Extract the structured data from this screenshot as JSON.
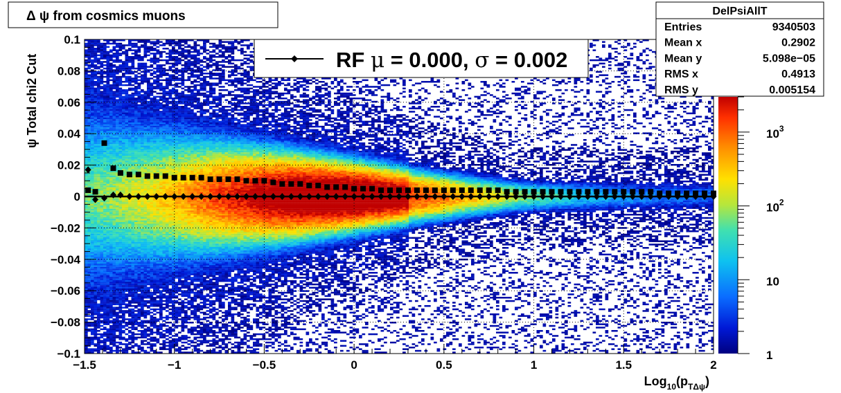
{
  "chart_data": {
    "type": "heatmap",
    "title": "Δ ψ from cosmics muons",
    "xlabel": "Log",
    "xlabel_sub": "10",
    "xlabel_arg": "(p",
    "xlabel_arg_sub": "TΔψ",
    "xlabel_close": ")",
    "ylabel": "ψ  Total chi2 Cut",
    "xlim": [
      -1.5,
      2
    ],
    "ylim": [
      -0.1,
      0.1
    ],
    "x_ticks": [
      -1.5,
      -1,
      -0.5,
      0,
      0.5,
      1,
      1.5,
      2
    ],
    "x_tick_labels": [
      "−1.5",
      "−1",
      "−0.5",
      "0",
      "0.5",
      "1",
      "1.5",
      "2"
    ],
    "y_ticks": [
      -0.1,
      -0.08,
      -0.06,
      -0.04,
      -0.02,
      0,
      0.02,
      0.04,
      0.06,
      0.08,
      0.1
    ],
    "y_tick_labels": [
      "−0.1",
      "−0.08",
      "−0.06",
      "−0.04",
      "−0.02",
      "0",
      "0.02",
      "0.04",
      "0.06",
      "0.08",
      "0.1"
    ],
    "grid": true,
    "z_scale": "log",
    "z_range": [
      1,
      3000
    ],
    "z_ticks": [
      {
        "base": "1",
        "exp": ""
      },
      {
        "base": "10",
        "exp": ""
      },
      {
        "base": "10",
        "exp": "2"
      },
      {
        "base": "10",
        "exp": "3"
      }
    ],
    "z_tick_values": [
      1,
      10,
      100,
      1000
    ],
    "legend": {
      "label_prefix": "RF ",
      "mu_symbol": "μ",
      "mu_text": " =  0.000, ",
      "sigma_symbol": "σ",
      "sigma_text": " =   0.002",
      "placement": "top-center"
    },
    "stats": {
      "title": "DelPsiAllT",
      "rows": [
        {
          "label": "Entries",
          "value": "9340503"
        },
        {
          "label": "Mean x",
          "value": "0.2902"
        },
        {
          "label": "Mean y",
          "value": "5.098e−05"
        },
        {
          "label": "RMS x",
          "value": "0.4913"
        },
        {
          "label": "RMS y",
          "value": "0.005154"
        }
      ]
    },
    "series": [
      {
        "marker": "square",
        "x": [
          -1.48,
          -1.44,
          -1.39,
          -1.34,
          -1.3,
          -1.25,
          -1.2,
          -1.15,
          -1.1,
          -1.05,
          -1.0,
          -0.95,
          -0.9,
          -0.85,
          -0.8,
          -0.75,
          -0.7,
          -0.65,
          -0.6,
          -0.55,
          -0.5,
          -0.45,
          -0.4,
          -0.35,
          -0.3,
          -0.25,
          -0.2,
          -0.15,
          -0.1,
          -0.05,
          0.0,
          0.05,
          0.1,
          0.15,
          0.2,
          0.25,
          0.3,
          0.35,
          0.4,
          0.45,
          0.5,
          0.55,
          0.6,
          0.65,
          0.7,
          0.75,
          0.8,
          0.85,
          0.9,
          0.95,
          1.0,
          1.05,
          1.1,
          1.15,
          1.2,
          1.25,
          1.3,
          1.35,
          1.4,
          1.45,
          1.5,
          1.55,
          1.6,
          1.65,
          1.7,
          1.75,
          1.8,
          1.85,
          1.9,
          1.95,
          2.0
        ],
        "y": [
          0.004,
          0.003,
          0.034,
          0.018,
          0.015,
          0.014,
          0.014,
          0.013,
          0.013,
          0.013,
          0.012,
          0.012,
          0.012,
          0.012,
          0.011,
          0.011,
          0.011,
          0.011,
          0.01,
          0.01,
          0.01,
          0.009,
          0.008,
          0.008,
          0.008,
          0.007,
          0.007,
          0.006,
          0.006,
          0.006,
          0.005,
          0.005,
          0.005,
          0.004,
          0.004,
          0.004,
          0.004,
          0.004,
          0.004,
          0.004,
          0.004,
          0.004,
          0.004,
          0.004,
          0.004,
          0.004,
          0.004,
          0.003,
          0.003,
          0.003,
          0.003,
          0.003,
          0.003,
          0.003,
          0.003,
          0.003,
          0.003,
          0.003,
          0.003,
          0.003,
          0.003,
          0.003,
          0.003,
          0.003,
          0.002,
          0.002,
          0.002,
          0.002,
          0.002,
          0.002,
          0.002
        ]
      },
      {
        "marker": "diamond",
        "x": [
          -1.48,
          -1.44,
          -1.39,
          -1.34,
          -1.3,
          -1.25,
          -1.2,
          -1.15,
          -1.1,
          -1.05,
          -1.0,
          -0.95,
          -0.9,
          -0.85,
          -0.8,
          -0.75,
          -0.7,
          -0.65,
          -0.6,
          -0.55,
          -0.5,
          -0.45,
          -0.4,
          -0.35,
          -0.3,
          -0.25,
          -0.2,
          -0.15,
          -0.1,
          -0.05,
          0.0,
          0.05,
          0.1,
          0.15,
          0.2,
          0.25,
          0.3,
          0.35,
          0.4,
          0.45,
          0.5,
          0.55,
          0.6,
          0.65,
          0.7,
          0.75,
          0.8,
          0.85,
          0.9,
          0.95,
          1.0,
          1.05,
          1.1,
          1.15,
          1.2,
          1.25,
          1.3,
          1.35,
          1.4,
          1.45,
          1.5,
          1.55,
          1.6,
          1.65,
          1.7,
          1.75,
          1.8,
          1.85,
          1.9,
          1.95,
          2.0
        ],
        "y": [
          0.017,
          -0.002,
          -0.001,
          0.001,
          0.001,
          0.0,
          0.0,
          0.0,
          0.0,
          0.0,
          0.0,
          0.0,
          0.0,
          0.0,
          0.0,
          0.0,
          0.0,
          0.0,
          0.0,
          0.0,
          0.0,
          0.0,
          0.0,
          0.0,
          0.0,
          0.0,
          0.0,
          0.0,
          0.0,
          0.0,
          0.0,
          0.0,
          0.0,
          0.0,
          0.0,
          0.0,
          0.0,
          0.0,
          0.0,
          0.0,
          0.0,
          0.0,
          0.0,
          0.0,
          0.0,
          0.0,
          0.0,
          0.0,
          0.0,
          0.0,
          0.0,
          0.0,
          0.0,
          0.0,
          0.0,
          0.0,
          0.0,
          0.0,
          0.0,
          0.0,
          0.0,
          0.0,
          0.0,
          0.0,
          0.0,
          0.0,
          0.0,
          0.0,
          0.0,
          0.0,
          0.0
        ]
      }
    ],
    "fit_line_y": 0.0
  }
}
